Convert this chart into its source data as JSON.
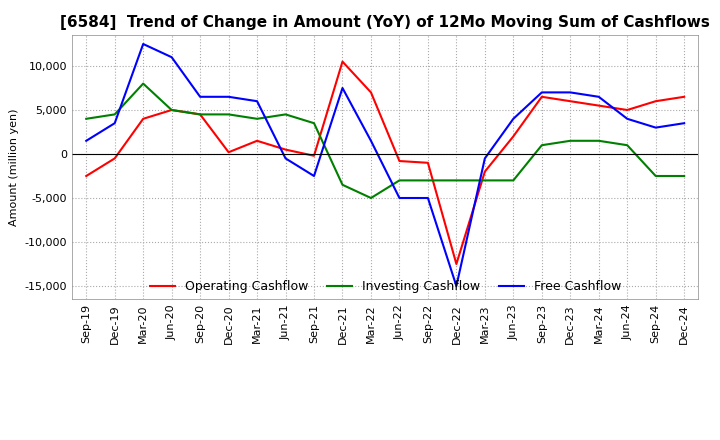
{
  "title": "[6584]  Trend of Change in Amount (YoY) of 12Mo Moving Sum of Cashflows",
  "ylabel": "Amount (million yen)",
  "ylim": [
    -16500,
    13500
  ],
  "yticks": [
    -15000,
    -10000,
    -5000,
    0,
    5000,
    10000
  ],
  "background_color": "#ffffff",
  "grid_color": "#aaaaaa",
  "x_labels": [
    "Sep-19",
    "Dec-19",
    "Mar-20",
    "Jun-20",
    "Sep-20",
    "Dec-20",
    "Mar-21",
    "Jun-21",
    "Sep-21",
    "Dec-21",
    "Mar-22",
    "Jun-22",
    "Sep-22",
    "Dec-22",
    "Mar-23",
    "Jun-23",
    "Sep-23",
    "Dec-23",
    "Mar-24",
    "Jun-24",
    "Sep-24",
    "Dec-24"
  ],
  "operating": [
    -2500,
    -500,
    4000,
    5000,
    4500,
    200,
    1500,
    500,
    -200,
    10500,
    7000,
    -800,
    -1000,
    -12500,
    -2000,
    2000,
    6500,
    6000,
    5500,
    5000,
    6000,
    6500
  ],
  "investing": [
    4000,
    4500,
    8000,
    5000,
    4500,
    4500,
    4000,
    4500,
    3500,
    -3500,
    -5000,
    -3000,
    -3000,
    -3000,
    -3000,
    -3000,
    1000,
    1500,
    1500,
    1000,
    -2500,
    -2500
  ],
  "free": [
    1500,
    3500,
    12500,
    11000,
    6500,
    6500,
    6000,
    -500,
    -2500,
    7500,
    1500,
    -5000,
    -5000,
    -15000,
    -500,
    4000,
    7000,
    7000,
    6500,
    4000,
    3000,
    3500
  ],
  "line_colors": {
    "operating": "#ff0000",
    "investing": "#008000",
    "free": "#0000ff"
  },
  "line_width": 1.5,
  "title_fontsize": 11,
  "tick_fontsize": 8,
  "legend_fontsize": 9
}
